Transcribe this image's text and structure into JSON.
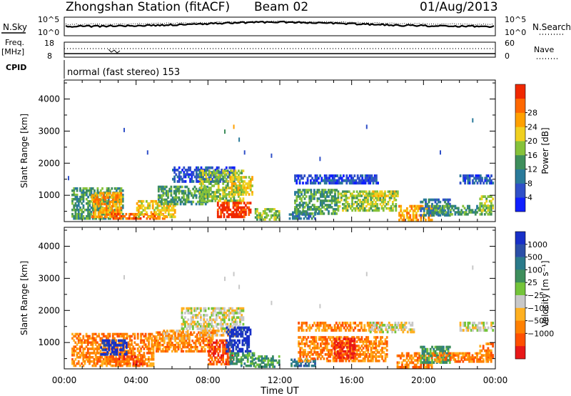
{
  "header": {
    "station_title": "Zhongshan Station (fitACF)",
    "beam": "Beam 02",
    "date": "01/Aug/2013"
  },
  "top_panels": {
    "nsky_label": "N.Sky",
    "nsearch_label": "N.Search",
    "nsky_axis_top": "10^5",
    "nsky_axis_bottom": "10^0",
    "freq_label": "Freq.",
    "freq_unit": "[MHz]",
    "freq_axis_top": "18",
    "freq_axis_bottom": "8",
    "nave_label": "Nave",
    "nave_axis_top": "60",
    "nave_axis_bottom": "0",
    "cpid_label": "CPID",
    "cpid_text": "normal (fast stereo) 153"
  },
  "chart_data": [
    {
      "type": "heatmap",
      "title": "",
      "xlabel": "",
      "ylabel": "Slant Range [km]",
      "xlim": [
        0,
        24
      ],
      "ylim": [
        180,
        4590
      ],
      "x_ticks": [
        "00:00",
        "04:00",
        "08:00",
        "12:00",
        "16:00",
        "20:00",
        "00:00"
      ],
      "y_ticks": [
        1000,
        2000,
        3000,
        4000
      ],
      "colorbar": {
        "label": "Power [dB]",
        "ticks": [
          "4",
          "8",
          "12",
          "16",
          "20",
          "24",
          "28"
        ],
        "colors": [
          "#1020ff",
          "#3050c8",
          "#2a7a9a",
          "#3e8e5c",
          "#86c23a",
          "#f0d020",
          "#ffa000",
          "#ff6800",
          "#f02800"
        ]
      },
      "regions": [
        {
          "t": [
            0.4,
            3.3
          ],
          "r": [
            250,
            1250
          ],
          "level": 3
        },
        {
          "t": [
            1.5,
            3.2
          ],
          "r": [
            300,
            1100
          ],
          "level": 6
        },
        {
          "t": [
            2.6,
            5.7
          ],
          "r": [
            250,
            450
          ],
          "level": 7
        },
        {
          "t": [
            4.0,
            6.2
          ],
          "r": [
            300,
            850
          ],
          "level": 5
        },
        {
          "t": [
            5.2,
            8.0
          ],
          "r": [
            700,
            1300
          ],
          "level": 3
        },
        {
          "t": [
            6.0,
            9.5
          ],
          "r": [
            1400,
            1900
          ],
          "level": 1
        },
        {
          "t": [
            7.5,
            10.0
          ],
          "r": [
            800,
            1800
          ],
          "level": 4
        },
        {
          "t": [
            8.5,
            10.4
          ],
          "r": [
            300,
            800
          ],
          "level": 8
        },
        {
          "t": [
            9.2,
            10.5
          ],
          "r": [
            1000,
            1600
          ],
          "level": 5
        },
        {
          "t": [
            10.6,
            12.0
          ],
          "r": [
            220,
            600
          ],
          "level": 4
        },
        {
          "t": [
            12.5,
            14.0
          ],
          "r": [
            250,
            500
          ],
          "level": 2
        },
        {
          "t": [
            12.8,
            17.5
          ],
          "r": [
            1350,
            1650
          ],
          "level": 1
        },
        {
          "t": [
            12.8,
            15.2
          ],
          "r": [
            400,
            1200
          ],
          "level": 3
        },
        {
          "t": [
            15.2,
            18.5
          ],
          "r": [
            500,
            1150
          ],
          "level": 4
        },
        {
          "t": [
            17.0,
            18.6
          ],
          "r": [
            950,
            1150
          ],
          "level": 5
        },
        {
          "t": [
            18.6,
            20.5
          ],
          "r": [
            200,
            700
          ],
          "level": 6
        },
        {
          "t": [
            19.8,
            21.5
          ],
          "r": [
            350,
            900
          ],
          "level": 2
        },
        {
          "t": [
            20.5,
            23.8
          ],
          "r": [
            380,
            700
          ],
          "level": 3
        },
        {
          "t": [
            22.0,
            23.9
          ],
          "r": [
            1350,
            1650
          ],
          "level": 1
        },
        {
          "t": [
            23.1,
            23.9
          ],
          "r": [
            500,
            1000
          ],
          "level": 4
        }
      ],
      "speckles": [
        {
          "t": 4.6,
          "r": 2400,
          "level": 1
        },
        {
          "t": 3.3,
          "r": 3100,
          "level": 1
        },
        {
          "t": 8.9,
          "r": 3050,
          "level": 3
        },
        {
          "t": 9.4,
          "r": 3200,
          "level": 6
        },
        {
          "t": 9.7,
          "r": 2800,
          "level": 2
        },
        {
          "t": 10.0,
          "r": 2400,
          "level": 1
        },
        {
          "t": 11.5,
          "r": 2300,
          "level": 1
        },
        {
          "t": 14.2,
          "r": 2200,
          "level": 1
        },
        {
          "t": 16.8,
          "r": 3200,
          "level": 1
        },
        {
          "t": 20.9,
          "r": 2400,
          "level": 1
        },
        {
          "t": 22.7,
          "r": 3400,
          "level": 2
        },
        {
          "t": 0.2,
          "r": 1600,
          "level": 1
        }
      ]
    },
    {
      "type": "heatmap",
      "title": "",
      "xlabel": "Time UT",
      "ylabel": "Slant Range [km]",
      "xlim": [
        0,
        24
      ],
      "ylim": [
        180,
        4590
      ],
      "x_ticks": [
        "00:00",
        "04:00",
        "08:00",
        "12:00",
        "16:00",
        "20:00",
        "00:00"
      ],
      "y_ticks": [
        1000,
        2000,
        3000,
        4000
      ],
      "colorbar": {
        "label": "Velocity [m s⁻¹]",
        "ticks": [
          "1000",
          "500",
          "100",
          "25",
          "−25",
          "−100",
          "−500",
          "−1000"
        ],
        "colors": [
          "#1830c8",
          "#2b4fa8",
          "#2a7a8a",
          "#3e8e5c",
          "#74c43a",
          "#c8c8c8",
          "#ffb020",
          "#ff8000",
          "#ff5000",
          "#e81818"
        ]
      },
      "regions": [
        {
          "t": [
            0.4,
            5.0
          ],
          "r": [
            250,
            1300
          ],
          "level": 7
        },
        {
          "t": [
            2.0,
            3.5
          ],
          "r": [
            600,
            1100
          ],
          "level": 0
        },
        {
          "t": [
            2.5,
            4.5
          ],
          "r": [
            300,
            600
          ],
          "level": 8
        },
        {
          "t": [
            5.0,
            8.3
          ],
          "r": [
            700,
            1350
          ],
          "level": 7
        },
        {
          "t": [
            5.5,
            7.0
          ],
          "r": [
            1100,
            1400
          ],
          "level": 6
        },
        {
          "t": [
            6.5,
            10.0
          ],
          "r": [
            1400,
            2100
          ],
          "level": 5
        },
        {
          "t": [
            7.5,
            9.5
          ],
          "r": [
            1200,
            1400
          ],
          "level": 6
        },
        {
          "t": [
            8.0,
            9.4
          ],
          "r": [
            300,
            1100
          ],
          "level": 8
        },
        {
          "t": [
            9.0,
            10.4
          ],
          "r": [
            700,
            1500
          ],
          "level": 0
        },
        {
          "t": [
            9.2,
            10.6
          ],
          "r": [
            250,
            700
          ],
          "level": 3
        },
        {
          "t": [
            10.6,
            12.0
          ],
          "r": [
            220,
            600
          ],
          "level": 3
        },
        {
          "t": [
            12.6,
            14.0
          ],
          "r": [
            250,
            500
          ],
          "level": 2
        },
        {
          "t": [
            13.0,
            17.8
          ],
          "r": [
            1350,
            1650
          ],
          "level": 7
        },
        {
          "t": [
            13.0,
            18.0
          ],
          "r": [
            400,
            1200
          ],
          "level": 7
        },
        {
          "t": [
            15.0,
            16.2
          ],
          "r": [
            500,
            1150
          ],
          "level": 9
        },
        {
          "t": [
            17.0,
            19.5
          ],
          "r": [
            1300,
            1650
          ],
          "level": 5
        },
        {
          "t": [
            18.5,
            20.5
          ],
          "r": [
            200,
            700
          ],
          "level": 7
        },
        {
          "t": [
            19.8,
            21.5
          ],
          "r": [
            350,
            900
          ],
          "level": 3
        },
        {
          "t": [
            20.5,
            23.8
          ],
          "r": [
            380,
            700
          ],
          "level": 7
        },
        {
          "t": [
            22.0,
            23.9
          ],
          "r": [
            1350,
            1650
          ],
          "level": 5
        },
        {
          "t": [
            23.1,
            23.9
          ],
          "r": [
            500,
            1000
          ],
          "level": 7
        }
      ],
      "speckles": [
        {
          "t": 3.3,
          "r": 3100,
          "level": 5
        },
        {
          "t": 8.9,
          "r": 3050,
          "level": 5
        },
        {
          "t": 9.4,
          "r": 3200,
          "level": 5
        },
        {
          "t": 9.7,
          "r": 2800,
          "level": 5
        },
        {
          "t": 11.5,
          "r": 2300,
          "level": 5
        },
        {
          "t": 14.2,
          "r": 2200,
          "level": 5
        },
        {
          "t": 16.8,
          "r": 3200,
          "level": 5
        },
        {
          "t": 22.7,
          "r": 3400,
          "level": 5
        }
      ]
    }
  ]
}
